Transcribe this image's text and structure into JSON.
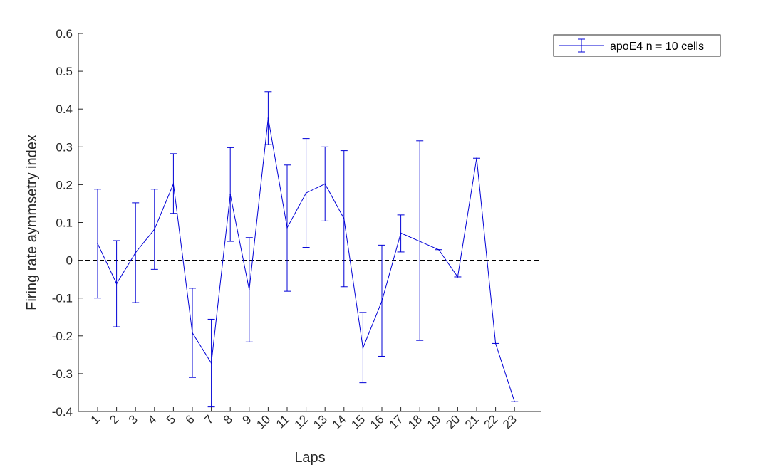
{
  "chart_data": {
    "type": "line",
    "xlabel": "Laps",
    "ylabel": "Firing rate aymmsetry index",
    "ylim": [
      -0.4,
      0.6
    ],
    "yticks": [
      "-0.4",
      "-0.3",
      "-0.2",
      "-0.1",
      "0",
      "0.1",
      "0.2",
      "0.3",
      "0.4",
      "0.5",
      "0.6"
    ],
    "categories": [
      "1",
      "2",
      "3",
      "4",
      "5",
      "6",
      "7",
      "8",
      "9",
      "10",
      "11",
      "12",
      "13",
      "14",
      "15",
      "16",
      "17",
      "18",
      "19",
      "20",
      "21",
      "22",
      "23"
    ],
    "reference_line": {
      "y": 0,
      "style": "dashed",
      "color": "#000000"
    },
    "legend": {
      "position": "top-right",
      "outside": true
    },
    "series": [
      {
        "name": "apoE4 n = 10 cells",
        "color": "#0000d6",
        "values": [
          0.044,
          -0.062,
          0.02,
          0.082,
          0.202,
          -0.192,
          -0.272,
          0.174,
          -0.078,
          0.376,
          0.086,
          0.178,
          0.202,
          0.11,
          -0.232,
          -0.108,
          0.072,
          0.05,
          0.028,
          -0.044,
          0.27,
          -0.22,
          -0.374
        ],
        "lower": [
          -0.1,
          -0.176,
          -0.112,
          -0.024,
          0.124,
          -0.31,
          -0.388,
          0.05,
          -0.216,
          0.306,
          -0.082,
          0.034,
          0.104,
          -0.07,
          -0.324,
          -0.254,
          0.022,
          -0.212,
          0.028,
          -0.044,
          0.27,
          -0.22,
          -0.374
        ],
        "upper": [
          0.188,
          0.052,
          0.152,
          0.188,
          0.282,
          -0.074,
          -0.156,
          0.298,
          0.06,
          0.446,
          0.252,
          0.322,
          0.3,
          0.29,
          -0.138,
          0.04,
          0.12,
          0.316,
          0.028,
          -0.044,
          0.27,
          -0.22,
          -0.374
        ]
      }
    ]
  }
}
